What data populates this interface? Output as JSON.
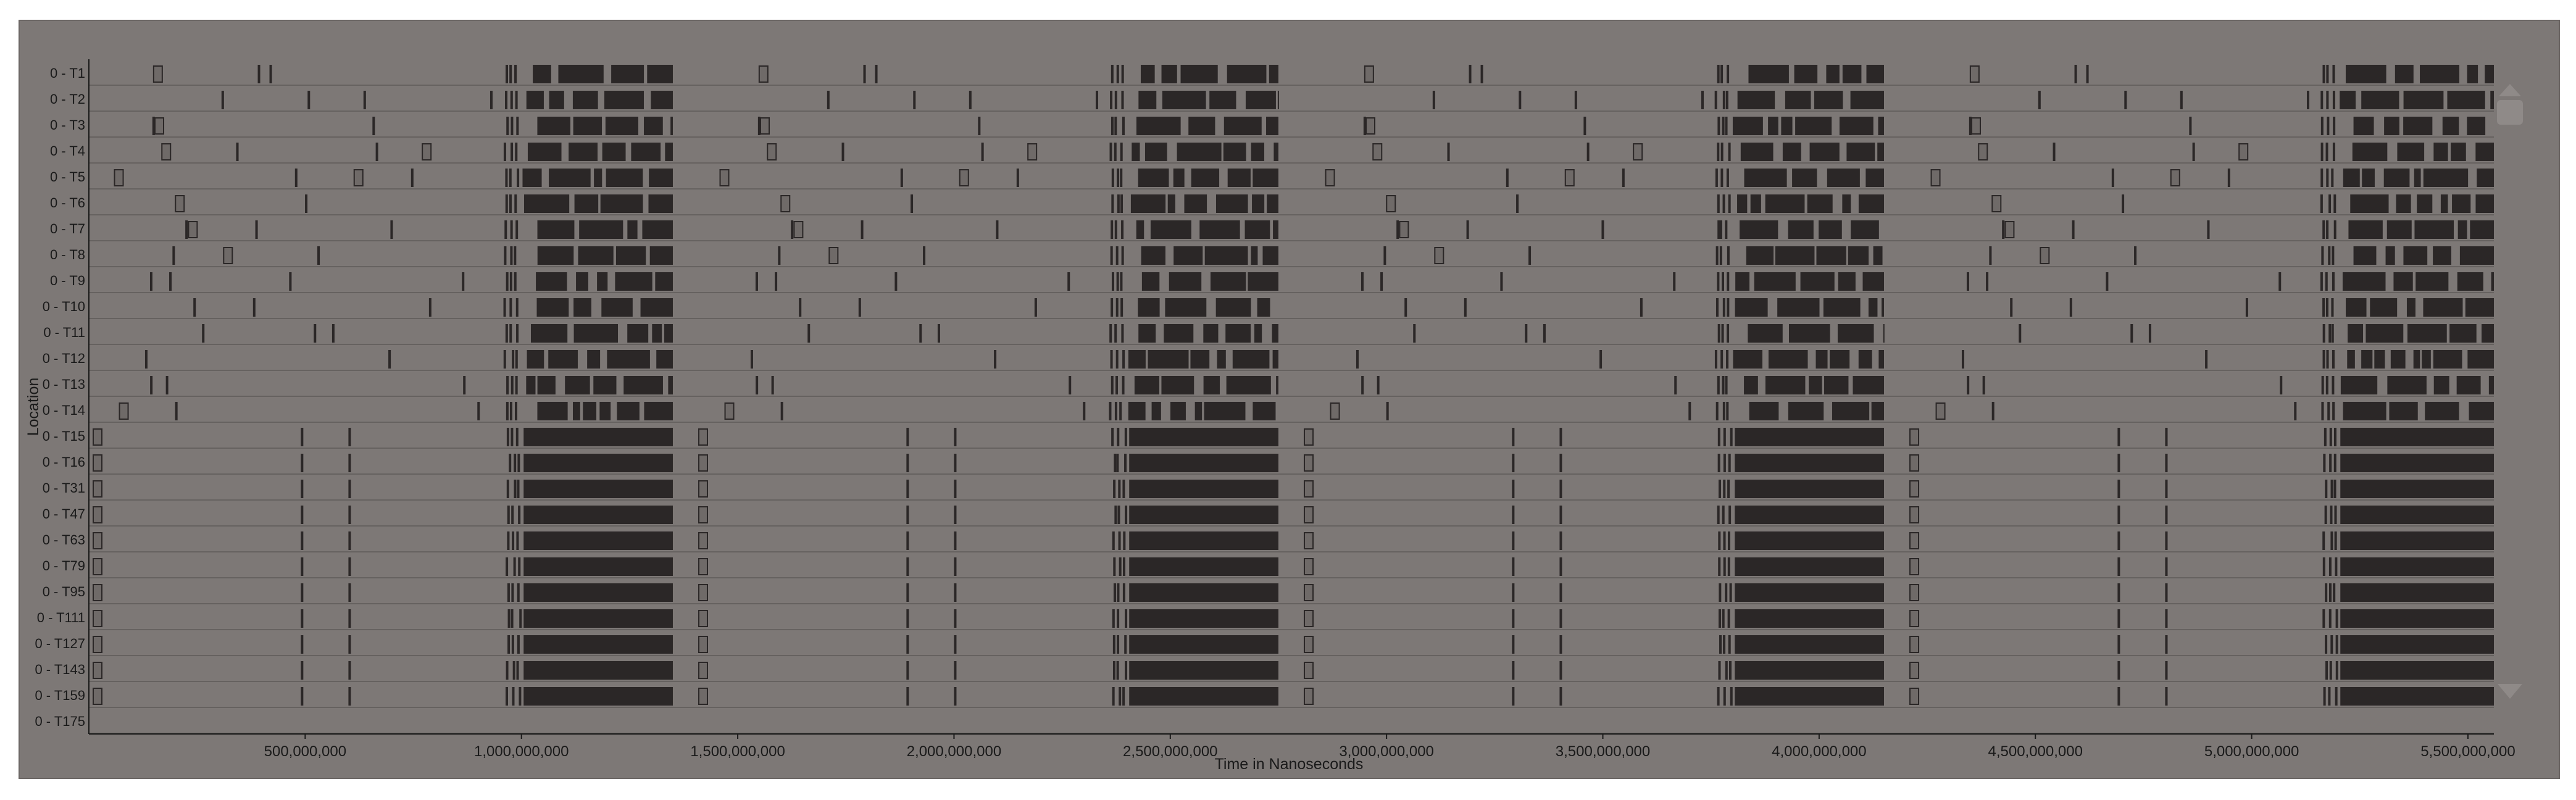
{
  "window": {
    "background": "#7d7876",
    "lane_line_color": "#5f5a58",
    "activity_color": "#2b2727",
    "marker_fill": "#6f6a68",
    "scroll_arrow_color": "#8f8a88"
  },
  "chart_data": {
    "type": "timeline",
    "title": "",
    "xlabel": "Time in Nanoseconds",
    "ylabel": "Location",
    "xlim": [
      0,
      5560000000
    ],
    "x_ticks": [
      {
        "value": 500000000,
        "label": "500,000,000"
      },
      {
        "value": 1000000000,
        "label": "1,000,000,000"
      },
      {
        "value": 1500000000,
        "label": "1,500,000,000"
      },
      {
        "value": 2000000000,
        "label": "2,000,000,000"
      },
      {
        "value": 2500000000,
        "label": "2,500,000,000"
      },
      {
        "value": 3000000000,
        "label": "3,000,000,000"
      },
      {
        "value": 3500000000,
        "label": "3,500,000,000"
      },
      {
        "value": 4000000000,
        "label": "4,000,000,000"
      },
      {
        "value": 4500000000,
        "label": "4,500,000,000"
      },
      {
        "value": 5000000000,
        "label": "5,000,000,000"
      },
      {
        "value": 5500000000,
        "label": "5,500,000,000"
      }
    ],
    "lanes": [
      "0 - T1",
      "0 - T2",
      "0 - T3",
      "0 - T4",
      "0 - T5",
      "0 - T6",
      "0 - T7",
      "0 - T8",
      "0 - T9",
      "0 - T10",
      "0 - T11",
      "0 - T12",
      "0 - T13",
      "0 - T14",
      "0 - T15",
      "0 - T16",
      "0 - T31",
      "0 - T47",
      "0 - T63",
      "0 - T79",
      "0 - T95",
      "0 - T111",
      "0 - T127",
      "0 - T143",
      "0 - T159",
      "0 - T175"
    ],
    "burst_intervals": [
      [
        1000000000,
        1350000000
      ],
      [
        2400000000,
        2750000000
      ],
      [
        3800000000,
        4150000000
      ],
      [
        5200000000,
        5560000000
      ]
    ],
    "cycle_period": 1400000000,
    "notes": "Dense dark bars mark activity in each thread lane; activity concentrates in four recurring bursts with sparse short events between them."
  }
}
